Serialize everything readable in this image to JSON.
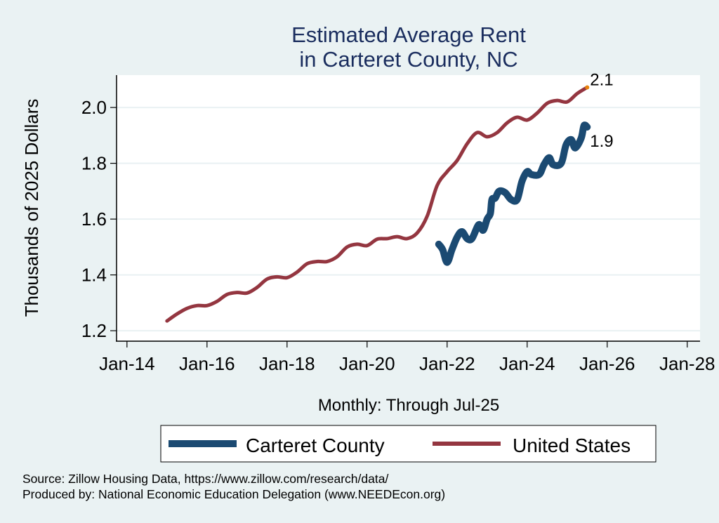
{
  "chart_data": {
    "type": "line",
    "title": [
      "Estimated Average Rent",
      "in Carteret County, NC"
    ],
    "xlabel": "Monthly: Through Jul-25",
    "ylabel": "Thousands of 2025 Dollars",
    "x_ticks": [
      {
        "year": 2014,
        "label": "Jan-14"
      },
      {
        "year": 2016,
        "label": "Jan-16"
      },
      {
        "year": 2018,
        "label": "Jan-18"
      },
      {
        "year": 2020,
        "label": "Jan-20"
      },
      {
        "year": 2022,
        "label": "Jan-22"
      },
      {
        "year": 2024,
        "label": "Jan-24"
      },
      {
        "year": 2026,
        "label": "Jan-26"
      },
      {
        "year": 2028,
        "label": "Jan-28"
      }
    ],
    "y_ticks": [
      {
        "value": 1.2,
        "label": "1.2"
      },
      {
        "value": 1.4,
        "label": "1.4"
      },
      {
        "value": 1.6,
        "label": "1.6"
      },
      {
        "value": 1.8,
        "label": "1.8"
      },
      {
        "value": 2.0,
        "label": "2.0"
      }
    ],
    "xlim": [
      2013.74,
      2028.32
    ],
    "ylim": [
      1.165,
      2.116
    ],
    "grid": "horizontal",
    "legend_position": "bottom",
    "series": [
      {
        "name": "Carteret County",
        "color": "#1b4a72",
        "end_label": "1.9",
        "points": [
          [
            2021.79,
            1.51
          ],
          [
            2021.89,
            1.49
          ],
          [
            2022.0,
            1.445
          ],
          [
            2022.12,
            1.49
          ],
          [
            2022.25,
            1.535
          ],
          [
            2022.37,
            1.555
          ],
          [
            2022.5,
            1.53
          ],
          [
            2022.62,
            1.53
          ],
          [
            2022.79,
            1.58
          ],
          [
            2022.9,
            1.56
          ],
          [
            2023.0,
            1.6
          ],
          [
            2023.08,
            1.62
          ],
          [
            2023.12,
            1.67
          ],
          [
            2023.2,
            1.675
          ],
          [
            2023.3,
            1.7
          ],
          [
            2023.45,
            1.695
          ],
          [
            2023.6,
            1.67
          ],
          [
            2023.75,
            1.67
          ],
          [
            2023.87,
            1.735
          ],
          [
            2024.0,
            1.77
          ],
          [
            2024.1,
            1.76
          ],
          [
            2024.3,
            1.76
          ],
          [
            2024.42,
            1.795
          ],
          [
            2024.55,
            1.82
          ],
          [
            2024.65,
            1.795
          ],
          [
            2024.85,
            1.8
          ],
          [
            2024.97,
            1.865
          ],
          [
            2025.1,
            1.885
          ],
          [
            2025.2,
            1.855
          ],
          [
            2025.35,
            1.89
          ],
          [
            2025.42,
            1.935
          ],
          [
            2025.5,
            1.93
          ]
        ]
      },
      {
        "name": "United States",
        "color": "#943640",
        "end_label": "2.1",
        "end_marker_color": "#e8820c",
        "points": [
          [
            2015.0,
            1.235
          ],
          [
            2015.25,
            1.26
          ],
          [
            2015.5,
            1.28
          ],
          [
            2015.75,
            1.29
          ],
          [
            2016.0,
            1.29
          ],
          [
            2016.25,
            1.305
          ],
          [
            2016.5,
            1.33
          ],
          [
            2016.75,
            1.337
          ],
          [
            2017.0,
            1.335
          ],
          [
            2017.25,
            1.355
          ],
          [
            2017.5,
            1.385
          ],
          [
            2017.75,
            1.393
          ],
          [
            2018.0,
            1.39
          ],
          [
            2018.25,
            1.41
          ],
          [
            2018.5,
            1.44
          ],
          [
            2018.75,
            1.448
          ],
          [
            2019.0,
            1.448
          ],
          [
            2019.25,
            1.465
          ],
          [
            2019.5,
            1.5
          ],
          [
            2019.75,
            1.51
          ],
          [
            2020.0,
            1.505
          ],
          [
            2020.25,
            1.528
          ],
          [
            2020.5,
            1.53
          ],
          [
            2020.75,
            1.537
          ],
          [
            2021.0,
            1.53
          ],
          [
            2021.25,
            1.55
          ],
          [
            2021.5,
            1.61
          ],
          [
            2021.75,
            1.72
          ],
          [
            2022.0,
            1.77
          ],
          [
            2022.25,
            1.81
          ],
          [
            2022.5,
            1.87
          ],
          [
            2022.75,
            1.91
          ],
          [
            2023.0,
            1.895
          ],
          [
            2023.25,
            1.91
          ],
          [
            2023.5,
            1.945
          ],
          [
            2023.75,
            1.965
          ],
          [
            2024.0,
            1.955
          ],
          [
            2024.25,
            1.98
          ],
          [
            2024.5,
            2.015
          ],
          [
            2024.75,
            2.025
          ],
          [
            2025.0,
            2.02
          ],
          [
            2025.25,
            2.05
          ],
          [
            2025.5,
            2.072
          ]
        ]
      }
    ],
    "notes": [
      "Source: Zillow Housing Data, https://www.zillow.com/research/data/",
      "Produced by: National Economic Education Delegation (www.NEEDEcon.org)"
    ]
  }
}
